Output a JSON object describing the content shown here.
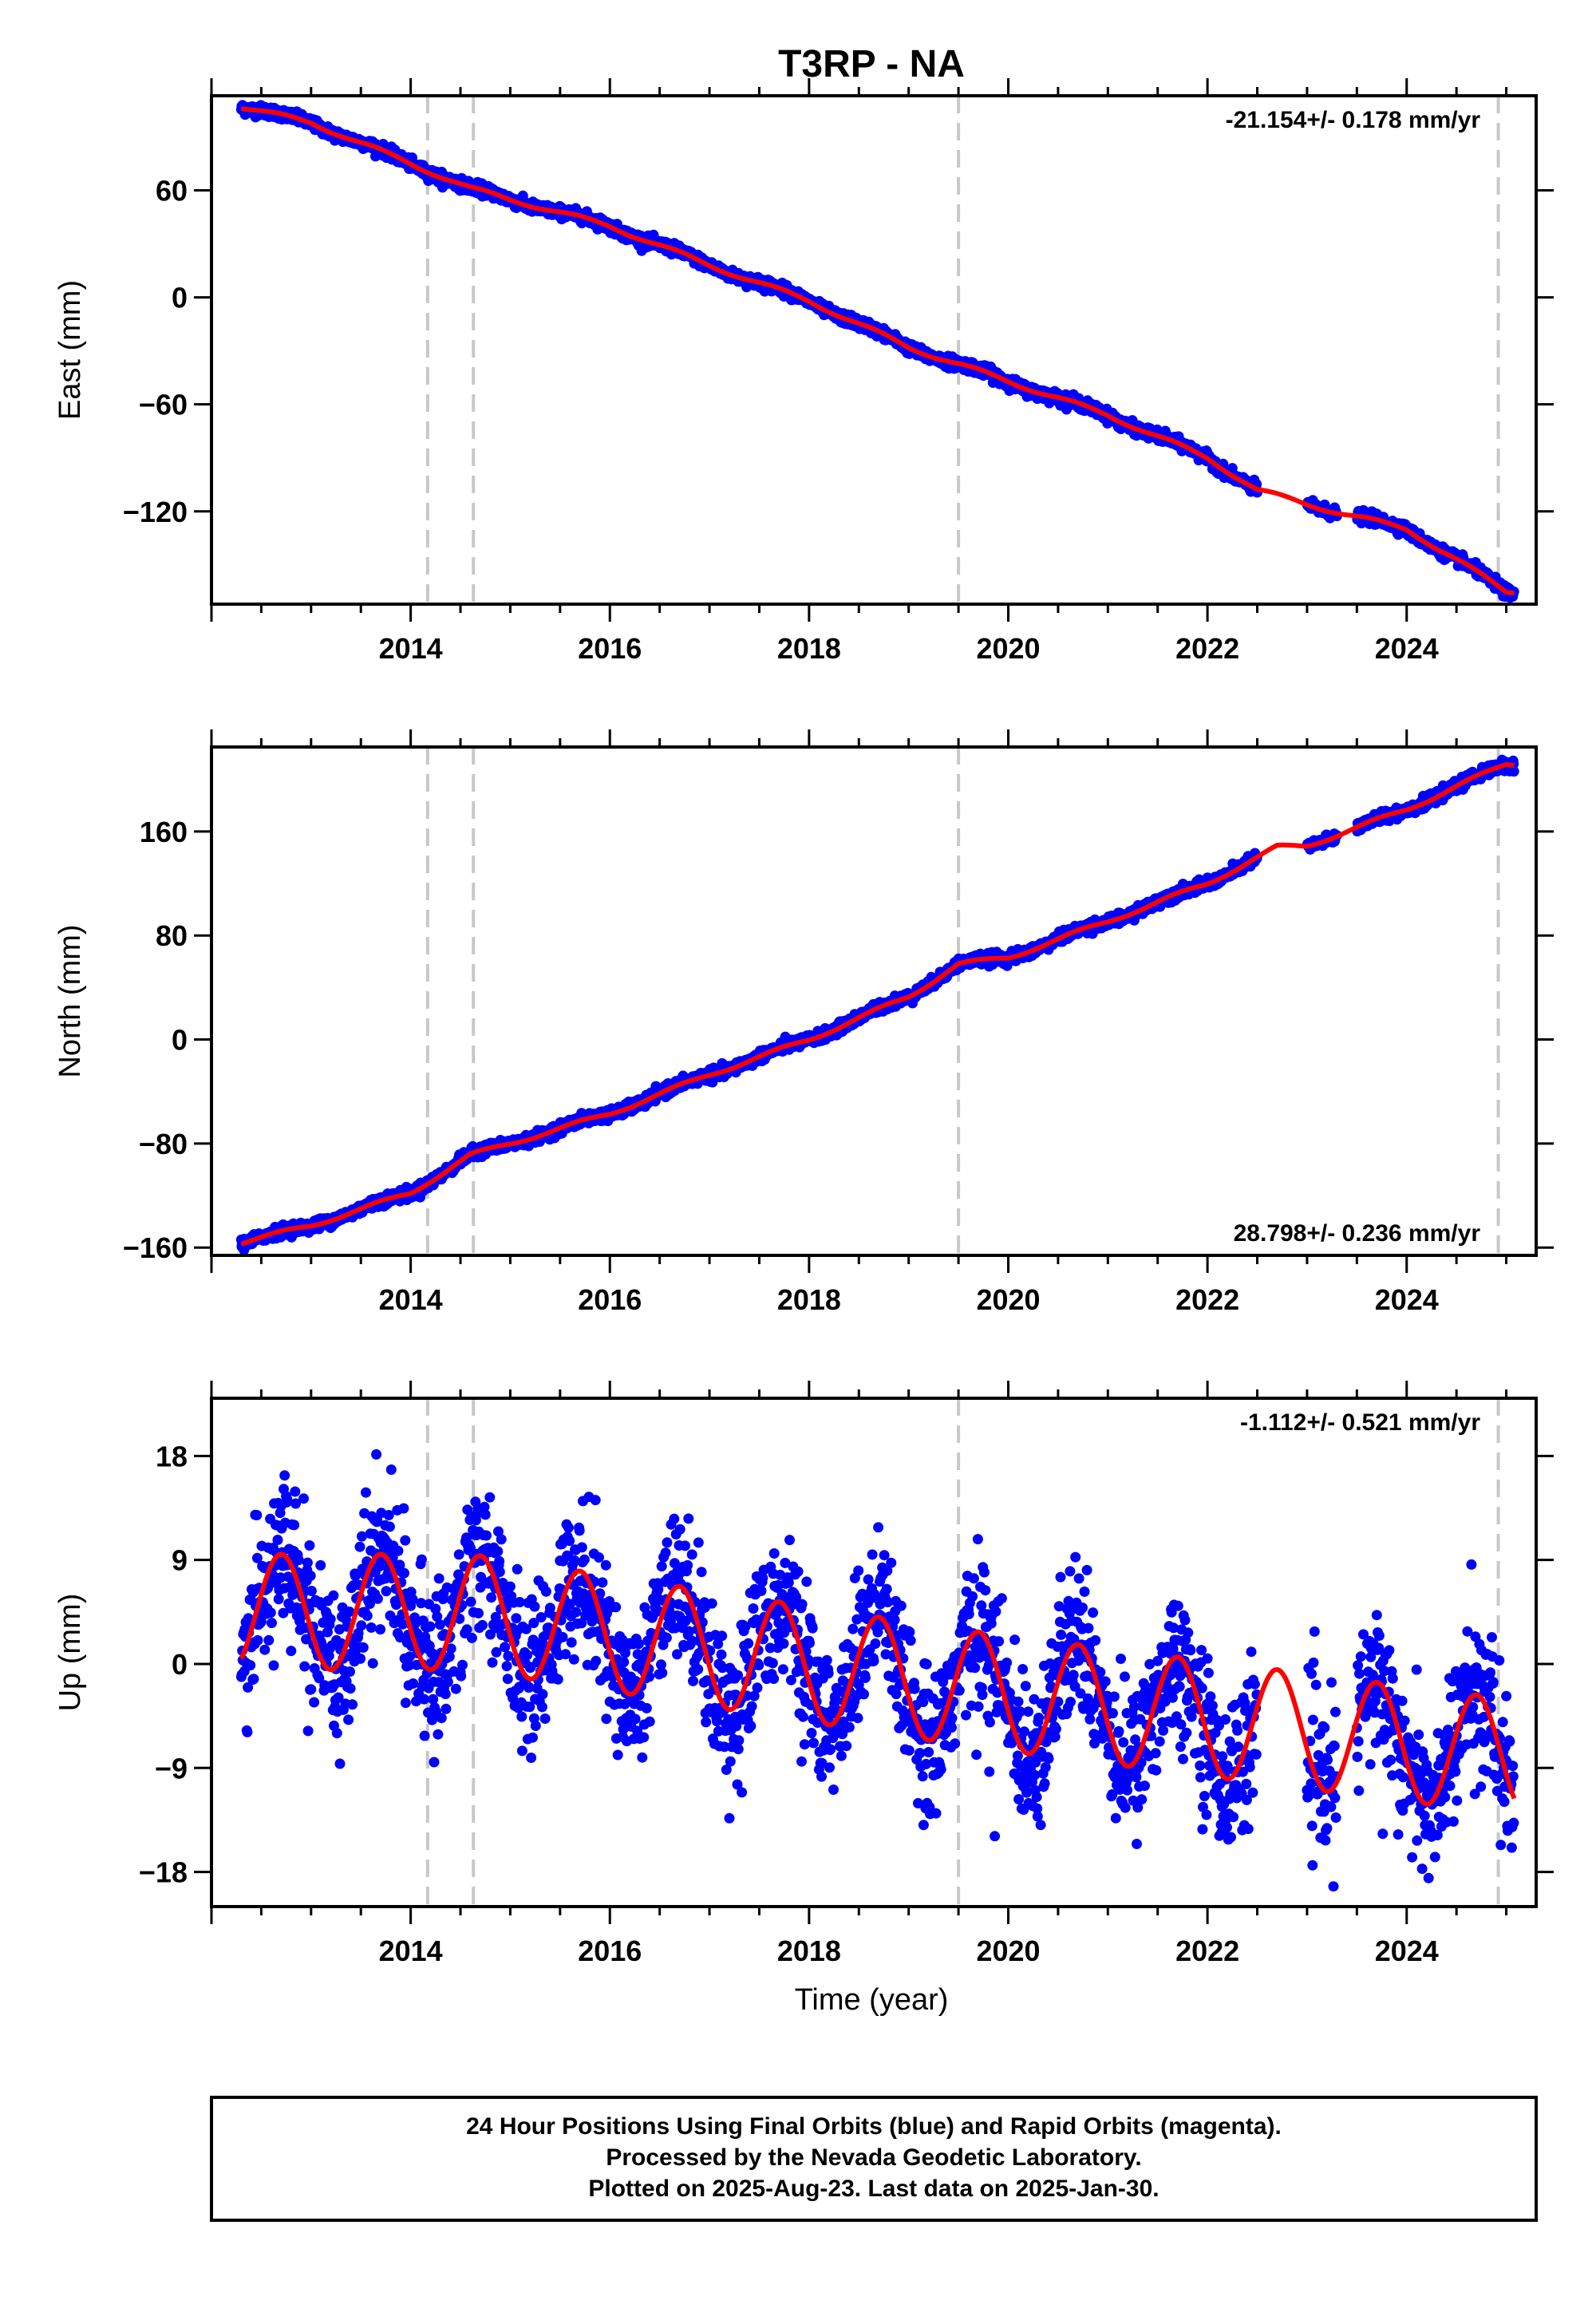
{
  "chart_data": {
    "title": "T3RP - NA",
    "type": "scatter",
    "xlabel": "Time (year)",
    "xlim": [
      2012.0,
      2025.3
    ],
    "xticks": [
      2014,
      2016,
      2018,
      2020,
      2022,
      2024
    ],
    "x_tick_labels": [
      "2014",
      "2016",
      "2018",
      "2020",
      "2022",
      "2024"
    ],
    "event_lines": [
      2014.17,
      2014.63,
      2019.5,
      2024.92
    ],
    "legend": "none",
    "grid": false,
    "series_colors": {
      "final_orbits": "#0000ff",
      "model_fit": "#ff0000",
      "event_line": "#c8c8c8"
    },
    "panels": [
      {
        "name": "east",
        "ylabel": "East (mm)",
        "ylim": [
          -172,
          113
        ],
        "yticks": [
          60,
          0,
          -60,
          -120
        ],
        "y_tick_labels": [
          "60",
          "0",
          "−60",
          "−120"
        ],
        "rate_text": "-21.154+/- 0.178 mm/yr",
        "rate_position": "top-right",
        "trend_points": [
          [
            2012.2,
            108
          ],
          [
            2013.0,
            98
          ],
          [
            2014.0,
            75
          ],
          [
            2014.6,
            61
          ],
          [
            2016.0,
            40
          ],
          [
            2017.0,
            18
          ],
          [
            2018.0,
            -2
          ],
          [
            2019.0,
            -28
          ],
          [
            2020.0,
            -47
          ],
          [
            2021.0,
            -66
          ],
          [
            2022.0,
            -90
          ],
          [
            2022.5,
            -108
          ],
          [
            2023.0,
            -116
          ],
          [
            2024.0,
            -130
          ],
          [
            2024.5,
            -147
          ],
          [
            2025.0,
            -165
          ]
        ],
        "noise": 1.5,
        "seasonal_amp": 1.2
      },
      {
        "name": "north",
        "ylabel": "North (mm)",
        "ylim": [
          -166,
          225
        ],
        "yticks": [
          160,
          80,
          0,
          -80,
          -160
        ],
        "y_tick_labels": [
          "160",
          "80",
          "0",
          "−80",
          "−160"
        ],
        "rate_text": "28.798+/- 0.236 mm/yr",
        "rate_position": "bottom-right",
        "trend_points": [
          [
            2012.2,
            -158
          ],
          [
            2013.0,
            -143
          ],
          [
            2014.0,
            -118
          ],
          [
            2014.6,
            -89
          ],
          [
            2016.0,
            -57
          ],
          [
            2017.0,
            -27
          ],
          [
            2018.0,
            0
          ],
          [
            2019.0,
            33
          ],
          [
            2019.5,
            58
          ],
          [
            2020.0,
            63
          ],
          [
            2021.0,
            91
          ],
          [
            2022.0,
            120
          ],
          [
            2022.7,
            148
          ],
          [
            2023.0,
            149
          ],
          [
            2024.0,
            177
          ],
          [
            2025.0,
            212
          ]
        ],
        "noise": 2.0,
        "seasonal_amp": 1.5
      },
      {
        "name": "up",
        "ylabel": "Up (mm)",
        "ylim": [
          -21,
          23
        ],
        "yticks": [
          18,
          9,
          0,
          -9,
          -18
        ],
        "y_tick_labels": [
          "18",
          "9",
          "0",
          "−9",
          "−18"
        ],
        "rate_text": "-1.112+/- 0.521 mm/yr",
        "rate_position": "top-right",
        "trend_points": [
          [
            2012.2,
            4.5
          ],
          [
            2014.6,
            4.5
          ],
          [
            2019.5,
            -2.0
          ],
          [
            2025.0,
            -8.0
          ]
        ],
        "noise": 3.2,
        "seasonal_amp": 5.0
      }
    ],
    "data_range": [
      2012.3,
      2025.08
    ],
    "data_gaps": [
      [
        2022.5,
        2023.0
      ],
      [
        2023.3,
        2023.5
      ]
    ]
  },
  "caption": {
    "line1": "24 Hour Positions Using Final Orbits (blue) and Rapid Orbits (magenta).",
    "line2": "Processed by the Nevada Geodetic Laboratory.",
    "line3": "Plotted on 2025-Aug-23. Last data on 2025-Jan-30."
  }
}
